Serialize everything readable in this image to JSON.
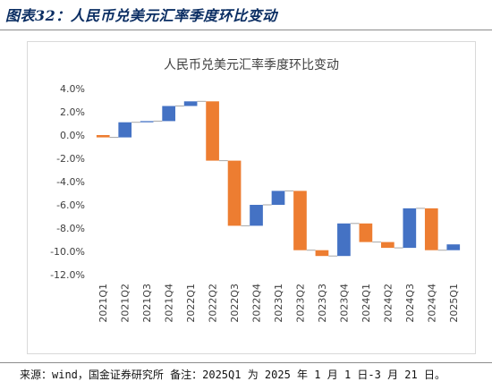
{
  "figure": {
    "title": "图表32：人民币兑美元汇率季度环比变动",
    "source_note": "来源：wind，国金证券研究所 备注：2025Q1 为 2025 年 1 月 1 日-3 月 21 日。"
  },
  "colors": {
    "up": "#4472c4",
    "down": "#ed7d31",
    "connector": "#a6a6a6",
    "gridline": "#d9d9d9",
    "title_blue": "#0b2e63"
  },
  "chart_data": {
    "type": "waterfall",
    "title": "人民币兑美元汇率季度环比变动",
    "xlabel": "",
    "ylabel": "",
    "ylim": [
      -12,
      4
    ],
    "yticks": [
      4,
      2,
      0,
      -2,
      -4,
      -6,
      -8,
      -10,
      -12
    ],
    "ytick_labels": [
      "4.0%",
      "2.0%",
      "0.0%",
      "-2.0%",
      "-4.0%",
      "-6.0%",
      "-8.0%",
      "-10.0%",
      "-12.0%"
    ],
    "grid": false,
    "legend": "none",
    "categories": [
      "2021Q1",
      "2021Q2",
      "2021Q3",
      "2021Q4",
      "2022Q1",
      "2022Q2",
      "2022Q3",
      "2022Q4",
      "2023Q1",
      "2023Q2",
      "2023Q3",
      "2023Q4",
      "2024Q1",
      "2024Q2",
      "2024Q3",
      "2024Q4",
      "2025Q1"
    ],
    "values": [
      -0.2,
      1.3,
      0.1,
      1.3,
      0.4,
      -5.1,
      -5.6,
      1.8,
      1.2,
      -5.1,
      -0.5,
      2.8,
      -1.6,
      -0.5,
      3.4,
      -3.6,
      0.5
    ],
    "cumulative": [
      -0.2,
      1.1,
      1.2,
      2.5,
      2.9,
      -2.2,
      -7.8,
      -6.0,
      -4.8,
      -9.9,
      -10.4,
      -7.6,
      -9.2,
      -9.7,
      -6.3,
      -9.9,
      -9.4
    ]
  }
}
